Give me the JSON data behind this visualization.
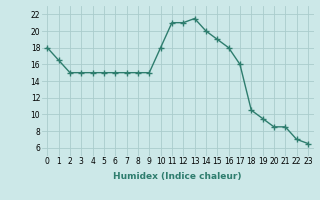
{
  "x": [
    0,
    1,
    2,
    3,
    4,
    5,
    6,
    7,
    8,
    9,
    10,
    11,
    12,
    13,
    14,
    15,
    16,
    17,
    18,
    19,
    20,
    21,
    22,
    23
  ],
  "y": [
    18,
    16.5,
    15,
    15,
    15,
    15,
    15,
    15,
    15,
    15,
    18,
    21,
    21,
    21.5,
    20,
    19,
    18,
    16,
    10.5,
    9.5,
    8.5,
    8.5,
    7,
    6.5
  ],
  "xlabel": "Humidex (Indice chaleur)",
  "xlim": [
    -0.5,
    23.5
  ],
  "ylim": [
    5,
    23
  ],
  "yticks": [
    6,
    8,
    10,
    12,
    14,
    16,
    18,
    20,
    22
  ],
  "xticks": [
    0,
    1,
    2,
    3,
    4,
    5,
    6,
    7,
    8,
    9,
    10,
    11,
    12,
    13,
    14,
    15,
    16,
    17,
    18,
    19,
    20,
    21,
    22,
    23
  ],
  "line_color": "#2e7d6e",
  "bg_color": "#cce8e8",
  "grid_color": "#aacccc",
  "marker": "+",
  "marker_size": 4,
  "line_width": 1.0,
  "tick_fontsize": 5.5,
  "xlabel_fontsize": 6.5
}
